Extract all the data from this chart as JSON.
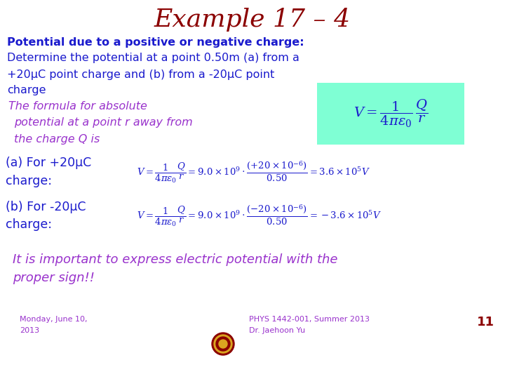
{
  "title": "Example 17 – 4",
  "title_color": "#8B0000",
  "title_fontsize": 26,
  "bg_color": "#FFFFFF",
  "line1_bold": "Potential due to a positive or negative charge:",
  "line1_color": "#1a1acd",
  "line2": "Determine the potential at a point 0.50m (a) from a",
  "line3": "+20μC point charge and (b) from a -20μC point",
  "line4": "charge",
  "body_color": "#1a1acd",
  "formula_box_color": "#7FFFD4",
  "purple_color": "#9932CC",
  "footer_date": "Monday, June 10,\n2013",
  "footer_course": "PHYS 1442-001, Summer 2013\nDr. Jaehoon Yu",
  "footer_page": "11",
  "footer_color": "#9932CC",
  "text_fontsize": 11.5,
  "eq_fontsize": 10.0
}
